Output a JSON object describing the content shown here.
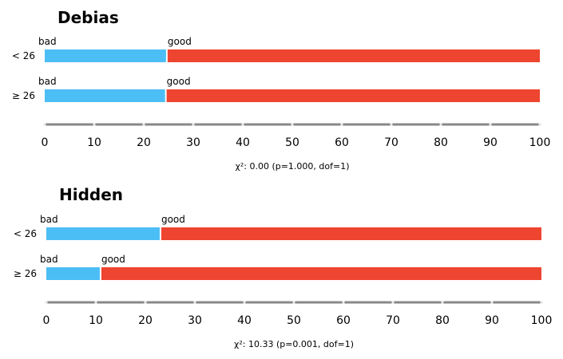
{
  "chart_data": [
    {
      "type": "bar",
      "stacked": true,
      "orientation": "horizontal",
      "title": "Debias",
      "categories": [
        "< 26",
        "≥ 26"
      ],
      "series": [
        {
          "name": "bad",
          "values": [
            24.5,
            24.3
          ],
          "color": "#4cbef6"
        },
        {
          "name": "good",
          "values": [
            75.5,
            75.7
          ],
          "color": "#ee4530"
        }
      ],
      "xlim": [
        0,
        100
      ],
      "xticks": [
        0,
        10,
        20,
        30,
        40,
        50,
        60,
        70,
        80,
        90,
        100
      ],
      "stat_text": "χ²: 0.00 (p=1.000, dof=1)"
    },
    {
      "type": "bar",
      "stacked": true,
      "orientation": "horizontal",
      "title": "Hidden",
      "categories": [
        "< 26",
        "≥ 26"
      ],
      "series": [
        {
          "name": "bad",
          "values": [
            22.9,
            10.8
          ],
          "color": "#4cbef6"
        },
        {
          "name": "good",
          "values": [
            77.1,
            89.2
          ],
          "color": "#ee4530"
        }
      ],
      "xlim": [
        0,
        100
      ],
      "xticks": [
        0,
        10,
        20,
        30,
        40,
        50,
        60,
        70,
        80,
        90,
        100
      ],
      "stat_text": "χ²: 10.33 (p=0.001, dof=1)"
    }
  ]
}
